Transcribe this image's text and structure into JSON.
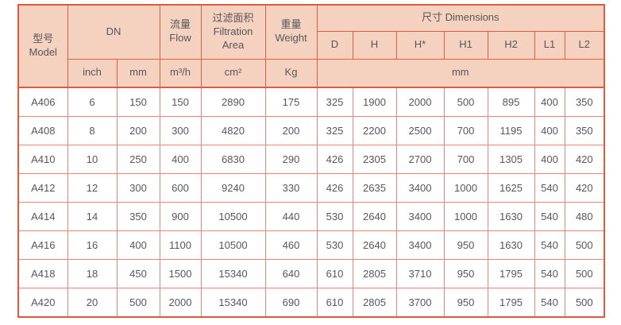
{
  "chart_data": {
    "type": "table",
    "title": "",
    "columns": [
      "型号 Model",
      "DN inch",
      "DN mm",
      "流量 Flow m³/h",
      "过滤面积 Filtration Area cm²",
      "重量 Weight Kg",
      "D mm",
      "H mm",
      "H* mm",
      "H1 mm",
      "H2 mm",
      "L1 mm",
      "L2 mm"
    ],
    "rows": [
      [
        "A406",
        "6",
        "150",
        "150",
        "2890",
        "175",
        "325",
        "1900",
        "2000",
        "500",
        "895",
        "400",
        "350"
      ],
      [
        "A408",
        "8",
        "200",
        "300",
        "4820",
        "200",
        "325",
        "2200",
        "2500",
        "700",
        "1195",
        "400",
        "350"
      ],
      [
        "A410",
        "10",
        "250",
        "400",
        "6830",
        "290",
        "426",
        "2305",
        "2700",
        "700",
        "1305",
        "400",
        "420"
      ],
      [
        "A412",
        "12",
        "300",
        "600",
        "9240",
        "330",
        "426",
        "2635",
        "3400",
        "1000",
        "1625",
        "540",
        "420"
      ],
      [
        "A414",
        "14",
        "350",
        "900",
        "10500",
        "440",
        "530",
        "2640",
        "3400",
        "1000",
        "1630",
        "540",
        "480"
      ],
      [
        "A416",
        "16",
        "400",
        "1100",
        "10500",
        "460",
        "530",
        "2640",
        "3400",
        "950",
        "1630",
        "540",
        "500"
      ],
      [
        "A418",
        "18",
        "450",
        "1500",
        "15340",
        "640",
        "610",
        "2805",
        "3710",
        "950",
        "1795",
        "540",
        "500"
      ],
      [
        "A420",
        "20",
        "500",
        "2000",
        "15340",
        "690",
        "610",
        "2805",
        "3700",
        "950",
        "1795",
        "540",
        "500"
      ]
    ]
  },
  "table": {
    "header": {
      "model": {
        "zh": "型号",
        "en": "Model"
      },
      "dn": "DN",
      "flow": {
        "zh": "流量",
        "en": "Flow"
      },
      "filtration": {
        "zh": "过滤面积",
        "en_line1": "Filtration",
        "en_line2": "Area"
      },
      "weight": {
        "zh": "重量",
        "en": "Weight"
      },
      "dimensions": "尺寸 Dimensions",
      "dim_cols": [
        "D",
        "H",
        "H*",
        "H1",
        "H2",
        "L1",
        "L2"
      ],
      "units": {
        "dn_inch": "inch",
        "dn_mm": "mm",
        "flow": "m³/h",
        "filtration": "cm²",
        "weight": "Kg",
        "dimensions": "mm"
      }
    }
  },
  "colors": {
    "border_outer": "#dd5b3c",
    "border_header": "#e2603f",
    "border_body": "#e8837a",
    "header_bg": "#f5d2bf",
    "text": "#56575b"
  }
}
